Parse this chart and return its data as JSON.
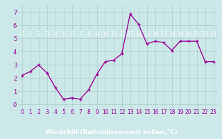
{
  "x": [
    0,
    1,
    2,
    3,
    4,
    5,
    6,
    7,
    8,
    9,
    10,
    11,
    12,
    13,
    14,
    15,
    16,
    17,
    18,
    19,
    20,
    21,
    22,
    23
  ],
  "y": [
    2.2,
    2.5,
    3.0,
    2.4,
    1.3,
    0.4,
    0.5,
    0.4,
    1.1,
    2.3,
    3.25,
    3.35,
    3.85,
    6.85,
    6.1,
    4.6,
    4.8,
    4.7,
    4.1,
    4.8,
    4.8,
    4.8,
    3.25,
    3.25
  ],
  "line_color": "#990099",
  "marker": "+",
  "plot_bg_color": "#cce8e8",
  "fig_bg_color": "#cce8e8",
  "bottom_bar_color": "#7b3f8c",
  "bottom_bar_text_color": "#ffffff",
  "grid_color": "#aacccc",
  "xlabel": "Windchill (Refroidissement éolien,°C)",
  "xlim": [
    -0.5,
    23.5
  ],
  "ylim": [
    -0.3,
    7.5
  ],
  "yticks": [
    0,
    1,
    2,
    3,
    4,
    5,
    6,
    7
  ],
  "xticks": [
    0,
    1,
    2,
    3,
    4,
    5,
    6,
    7,
    8,
    9,
    10,
    11,
    12,
    13,
    14,
    15,
    16,
    17,
    18,
    19,
    20,
    21,
    22,
    23
  ],
  "tick_fontsize": 5.5,
  "xlabel_fontsize": 6.5,
  "ytick_fontsize": 6,
  "linewidth": 1.0,
  "markersize": 3.5,
  "markeredgewidth": 1.0
}
